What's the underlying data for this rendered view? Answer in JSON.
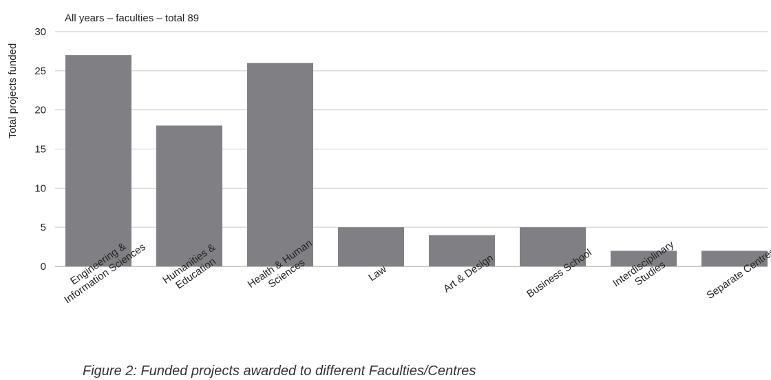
{
  "chart_data": {
    "type": "bar",
    "title": "All years – faculties – total 89",
    "xlabel": "",
    "ylabel": "Total projects funded",
    "categories": [
      [
        "Engineering &",
        "Information Sciences"
      ],
      [
        "Humanities &",
        "Education"
      ],
      [
        "Health & Human",
        "Sciences"
      ],
      [
        "Law"
      ],
      [
        "Art & Design"
      ],
      [
        "Business School"
      ],
      [
        "Interdisciplinary",
        "Studies"
      ],
      [
        "Separate Centres"
      ]
    ],
    "values": [
      27,
      18,
      26,
      5,
      4,
      5,
      2,
      2
    ],
    "ylim": [
      0,
      30
    ],
    "yticks": [
      0,
      5,
      10,
      15,
      20,
      25,
      30
    ],
    "grid": true,
    "bar_color": "#808084"
  },
  "caption": "Figure 2: Funded projects awarded to different Faculties/Centres"
}
